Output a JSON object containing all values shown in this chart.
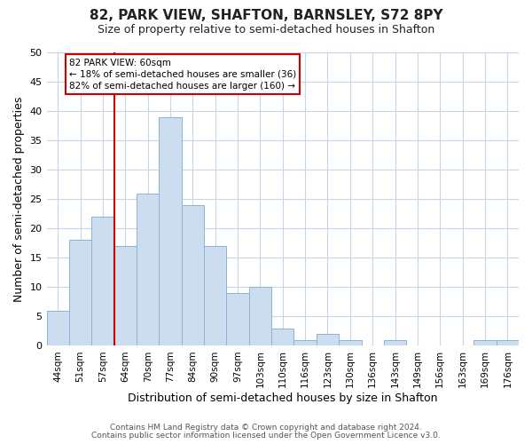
{
  "title": "82, PARK VIEW, SHAFTON, BARNSLEY, S72 8PY",
  "subtitle": "Size of property relative to semi-detached houses in Shafton",
  "xlabel": "Distribution of semi-detached houses by size in Shafton",
  "ylabel": "Number of semi-detached properties",
  "bin_labels": [
    "44sqm",
    "51sqm",
    "57sqm",
    "64sqm",
    "70sqm",
    "77sqm",
    "84sqm",
    "90sqm",
    "97sqm",
    "103sqm",
    "110sqm",
    "116sqm",
    "123sqm",
    "130sqm",
    "136sqm",
    "143sqm",
    "149sqm",
    "156sqm",
    "163sqm",
    "169sqm",
    "176sqm"
  ],
  "bar_heights": [
    6,
    18,
    22,
    17,
    26,
    39,
    24,
    17,
    9,
    10,
    3,
    1,
    2,
    1,
    0,
    1,
    0,
    0,
    0,
    1,
    1
  ],
  "bar_color": "#ccddf0",
  "bar_edge_color": "#8ab4d8",
  "vline_color": "#cc0000",
  "annotation_line1": "82 PARK VIEW: 60sqm",
  "annotation_line2": "← 18% of semi-detached houses are smaller (36)",
  "annotation_line3": "82% of semi-detached houses are larger (160) →",
  "annotation_box_edgecolor": "#cc0000",
  "ylim": [
    0,
    50
  ],
  "yticks": [
    0,
    5,
    10,
    15,
    20,
    25,
    30,
    35,
    40,
    45,
    50
  ],
  "grid_color": "#c8d4e8",
  "footer_line1": "Contains HM Land Registry data © Crown copyright and database right 2024.",
  "footer_line2": "Contains public sector information licensed under the Open Government Licence v3.0.",
  "bg_color": "#ffffff",
  "plot_bg_color": "#ffffff"
}
